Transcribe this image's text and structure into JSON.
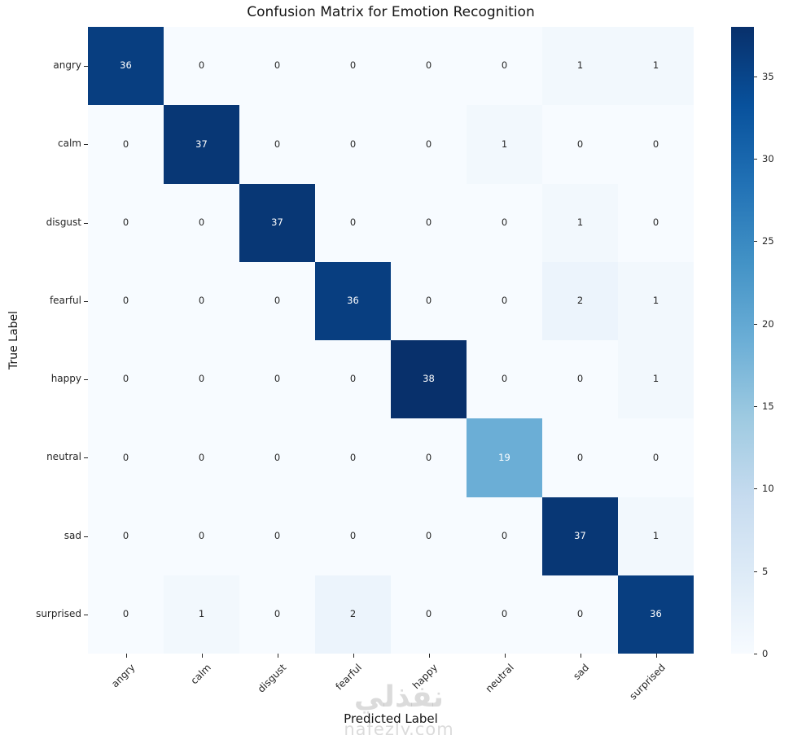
{
  "chart_data": {
    "type": "heatmap",
    "title": "Confusion Matrix for Emotion Recognition",
    "xlabel": "Predicted Label",
    "ylabel": "True Label",
    "x_categories": [
      "angry",
      "calm",
      "disgust",
      "fearful",
      "happy",
      "neutral",
      "sad",
      "surprised"
    ],
    "y_categories": [
      "angry",
      "calm",
      "disgust",
      "fearful",
      "happy",
      "neutral",
      "sad",
      "surprised"
    ],
    "matrix": [
      [
        36,
        0,
        0,
        0,
        0,
        0,
        1,
        1
      ],
      [
        0,
        37,
        0,
        0,
        0,
        1,
        0,
        0
      ],
      [
        0,
        0,
        37,
        0,
        0,
        0,
        1,
        0
      ],
      [
        0,
        0,
        0,
        36,
        0,
        0,
        2,
        1
      ],
      [
        0,
        0,
        0,
        0,
        38,
        0,
        0,
        1
      ],
      [
        0,
        0,
        0,
        0,
        0,
        19,
        0,
        0
      ],
      [
        0,
        0,
        0,
        0,
        0,
        0,
        37,
        1
      ],
      [
        0,
        1,
        0,
        2,
        0,
        0,
        0,
        36
      ]
    ],
    "vmin": 0,
    "vmax": 38,
    "colormap": "Blues",
    "colormap_stops": [
      "#f7fbff",
      "#deebf7",
      "#c6dbef",
      "#9ecae1",
      "#6baed6",
      "#4292c6",
      "#2171b5",
      "#08519c",
      "#08306b"
    ],
    "colorbar_ticks": [
      0,
      5,
      10,
      15,
      20,
      25,
      30,
      35
    ],
    "legend_position": "right-colorbar",
    "grid": false,
    "annotations": true
  },
  "colors": {
    "annot_dark": "#262626",
    "annot_light": "#ffffff",
    "tick": "#262626",
    "background": "#ffffff"
  },
  "watermark": {
    "arabic": "نفذلي",
    "latin": "nafezly.com"
  }
}
